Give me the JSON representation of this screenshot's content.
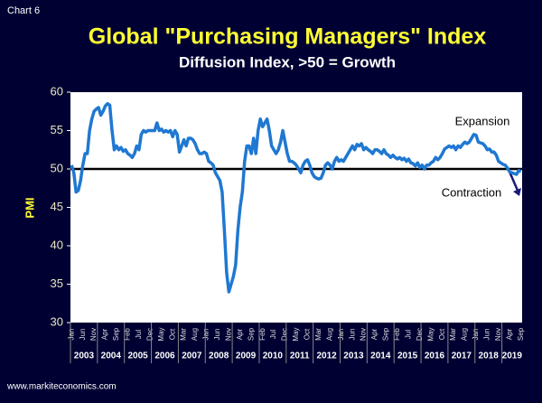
{
  "chart_data": {
    "type": "line",
    "chart_label": "Chart 6",
    "title": "Global \"Purchasing Managers\" Index",
    "subtitle": "Diffusion Index, >50 = Growth",
    "y_axis_label": "PMI",
    "source": "www.markiteconomics.com",
    "annotations": [
      "Expansion",
      "Contraction"
    ],
    "reference_line": 50,
    "color": "#1f78d1",
    "ylim": [
      30,
      60
    ],
    "yticks": [
      30,
      35,
      40,
      45,
      50,
      55,
      60
    ],
    "years": [
      "2003",
      "2004",
      "2005",
      "2006",
      "2007",
      "2008",
      "2009",
      "2010",
      "2011",
      "2012",
      "2013",
      "2014",
      "2015",
      "2016",
      "2017",
      "2018",
      "2019"
    ],
    "categories": [
      "Jan",
      null,
      null,
      null,
      null,
      "Jun",
      null,
      null,
      null,
      null,
      "Nov",
      null,
      null,
      null,
      null,
      "Apr",
      null,
      null,
      null,
      null,
      "Sep",
      null,
      null,
      null,
      null,
      "Feb",
      null,
      null,
      null,
      null,
      "Jul",
      null,
      null,
      null,
      null,
      "Dec",
      null,
      null,
      null,
      null,
      "May",
      null,
      null,
      null,
      null,
      "Oct",
      null,
      null,
      null,
      null,
      "Mar",
      null,
      null,
      null,
      null,
      "Aug",
      null,
      null,
      null,
      null,
      "Jan",
      null,
      null,
      null,
      null,
      "Jun",
      null,
      null,
      null,
      null,
      "Nov",
      null,
      null,
      null,
      null,
      "Apr",
      null,
      null,
      null,
      null,
      "Sep",
      null,
      null,
      null,
      null,
      "Feb",
      null,
      null,
      null,
      null,
      "Jul",
      null,
      null,
      null,
      null,
      "Dec",
      null,
      null,
      null,
      null,
      "May",
      null,
      null,
      null,
      null,
      "Oct",
      null,
      null,
      null,
      null,
      "Mar",
      null,
      null,
      null,
      null,
      "Aug",
      null,
      null,
      null,
      null,
      "Jan",
      null,
      null,
      null,
      null,
      "Jun",
      null,
      null,
      null,
      null,
      "Nov",
      null,
      null,
      null,
      null,
      "Apr",
      null,
      null,
      null,
      null,
      "Sep",
      null,
      null,
      null,
      null,
      "Feb",
      null,
      null,
      null,
      null,
      "Jul",
      null,
      null,
      null,
      null,
      "Dec",
      null,
      null,
      null,
      null,
      "May",
      null,
      null,
      null,
      null,
      "Oct",
      null,
      null,
      null,
      null,
      "Mar",
      null,
      null,
      null,
      null,
      "Aug",
      null,
      null,
      null,
      null,
      "Jan",
      null,
      null,
      null,
      null,
      "Jun",
      null,
      null,
      null,
      null,
      "Nov",
      null,
      null,
      null,
      null,
      "Apr",
      null,
      null,
      null,
      null,
      "Sep"
    ],
    "values": [
      50.5,
      49.5,
      47,
      47.2,
      48.5,
      50.5,
      52,
      52,
      55,
      56.5,
      57.5,
      57.8,
      58,
      57,
      57.5,
      58.2,
      58.5,
      58.3,
      55,
      52.5,
      53,
      52.5,
      52.8,
      52.3,
      52.5,
      52,
      51.8,
      51.5,
      52,
      53,
      52.5,
      54.5,
      55,
      54.8,
      55,
      55,
      55,
      55,
      56,
      55,
      55.2,
      54.8,
      55,
      54.8,
      55,
      54.2,
      55,
      54.5,
      52.2,
      53,
      53.8,
      53,
      54,
      54,
      53.8,
      53.3,
      52.5,
      52,
      52,
      52.2,
      52,
      51,
      50.8,
      50.5,
      49.5,
      49,
      48.5,
      47,
      42,
      36.5,
      34,
      35,
      36,
      37.5,
      42,
      45,
      47,
      51,
      53,
      53,
      52,
      54,
      52,
      55,
      56.5,
      55.5,
      56,
      56.5,
      55,
      53,
      52.5,
      52,
      52.5,
      53.5,
      55,
      53.5,
      52,
      51,
      51,
      50.8,
      50.5,
      50,
      49.5,
      50.5,
      51,
      51.2,
      50.5,
      49.5,
      49,
      48.8,
      48.7,
      48.8,
      49.5,
      50.5,
      50.8,
      50.5,
      50,
      51,
      51.5,
      51,
      51.2,
      51,
      51.5,
      52,
      52.5,
      53,
      52.5,
      53.2,
      53,
      53.3,
      52.5,
      52.8,
      52.5,
      52.3,
      52,
      52.5,
      52.5,
      52.3,
      52,
      52.5,
      52,
      51.8,
      51.5,
      51.8,
      51.5,
      51.3,
      51.5,
      51.2,
      51.4,
      51,
      51.3,
      50.8,
      50.7,
      50.4,
      50.8,
      50.2,
      50.5,
      50,
      50.5,
      50.5,
      50.8,
      51,
      51.5,
      51.2,
      51.5,
      52,
      52.6,
      52.8,
      53,
      52.8,
      53,
      52.5,
      53,
      52.8,
      53.2,
      53.5,
      53.3,
      53.5,
      54,
      54.5,
      54.4,
      53.5,
      53.4,
      53.3,
      53,
      52.5,
      52.6,
      52.2,
      52.2,
      51.8,
      51,
      50.8,
      50.6,
      50.5,
      50.1,
      49.6,
      49.5,
      49.4,
      49.3,
      49.8,
      49.7
    ]
  }
}
